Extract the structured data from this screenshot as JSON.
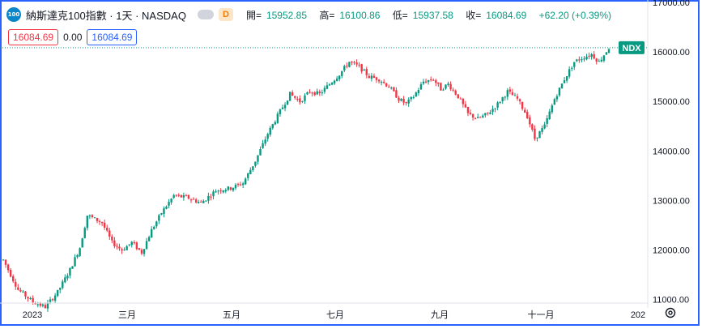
{
  "header": {
    "logo_text": "100",
    "title": "納斯達克100指數 · 1天 · NASDAQ",
    "delay_badge": "D",
    "ohlc": {
      "open_label": "開=",
      "open": "15952.85",
      "high_label": "高=",
      "high": "16100.86",
      "low_label": "低=",
      "low": "15937.58",
      "close_label": "收=",
      "close": "16084.69",
      "change": "+62.20 (+0.39%)"
    }
  },
  "price_boxes": {
    "sell": "16084.69",
    "spread": "0.00",
    "buy": "16084.69"
  },
  "symbol_tag": "NDX",
  "colors": {
    "up": "#089981",
    "down": "#f23645",
    "accent": "#2962ff",
    "tag": "#089981"
  },
  "chart_data": {
    "type": "candlestick",
    "title": "",
    "xlabel": "",
    "ylabel": "",
    "ylim": [
      10600,
      17000
    ],
    "y_ticks": [
      "11000.00",
      "12000.00",
      "13000.00",
      "14000.00",
      "15000.00",
      "16000.00",
      "17000.00"
    ],
    "x_ticks": [
      "2023",
      "三月",
      "五月",
      "七月",
      "九月",
      "十一月",
      "202"
    ],
    "last_price": 16084.69,
    "anchors": [
      {
        "x": 0,
        "y": 11800
      },
      {
        "x": 6,
        "y": 11200
      },
      {
        "x": 12,
        "y": 10950
      },
      {
        "x": 17,
        "y": 10850
      },
      {
        "x": 22,
        "y": 11150
      },
      {
        "x": 27,
        "y": 11600
      },
      {
        "x": 31,
        "y": 12050
      },
      {
        "x": 34,
        "y": 12700
      },
      {
        "x": 36,
        "y": 12650
      },
      {
        "x": 40,
        "y": 12550
      },
      {
        "x": 44,
        "y": 12150
      },
      {
        "x": 48,
        "y": 12000
      },
      {
        "x": 52,
        "y": 12150
      },
      {
        "x": 56,
        "y": 11950
      },
      {
        "x": 60,
        "y": 12400
      },
      {
        "x": 64,
        "y": 12750
      },
      {
        "x": 69,
        "y": 13100
      },
      {
        "x": 75,
        "y": 13050
      },
      {
        "x": 80,
        "y": 12950
      },
      {
        "x": 86,
        "y": 13200
      },
      {
        "x": 92,
        "y": 13250
      },
      {
        "x": 97,
        "y": 13350
      },
      {
        "x": 102,
        "y": 13800
      },
      {
        "x": 107,
        "y": 14350
      },
      {
        "x": 112,
        "y": 14800
      },
      {
        "x": 116,
        "y": 15150
      },
      {
        "x": 120,
        "y": 15000
      },
      {
        "x": 124,
        "y": 15200
      },
      {
        "x": 128,
        "y": 15150
      },
      {
        "x": 132,
        "y": 15350
      },
      {
        "x": 136,
        "y": 15550
      },
      {
        "x": 140,
        "y": 15800
      },
      {
        "x": 144,
        "y": 15700
      },
      {
        "x": 148,
        "y": 15500
      },
      {
        "x": 152,
        "y": 15450
      },
      {
        "x": 156,
        "y": 15300
      },
      {
        "x": 160,
        "y": 15050
      },
      {
        "x": 163,
        "y": 14950
      },
      {
        "x": 166,
        "y": 15100
      },
      {
        "x": 170,
        "y": 15400
      },
      {
        "x": 174,
        "y": 15450
      },
      {
        "x": 177,
        "y": 15250
      },
      {
        "x": 180,
        "y": 15350
      },
      {
        "x": 184,
        "y": 15100
      },
      {
        "x": 188,
        "y": 14750
      },
      {
        "x": 192,
        "y": 14650
      },
      {
        "x": 196,
        "y": 14750
      },
      {
        "x": 200,
        "y": 14950
      },
      {
        "x": 204,
        "y": 15200
      },
      {
        "x": 208,
        "y": 15050
      },
      {
        "x": 212,
        "y": 14700
      },
      {
        "x": 215,
        "y": 14250
      },
      {
        "x": 219,
        "y": 14500
      },
      {
        "x": 223,
        "y": 15050
      },
      {
        "x": 227,
        "y": 15450
      },
      {
        "x": 231,
        "y": 15800
      },
      {
        "x": 235,
        "y": 15900
      },
      {
        "x": 238,
        "y": 15950
      },
      {
        "x": 241,
        "y": 15800
      },
      {
        "x": 245,
        "y": 16084
      }
    ]
  }
}
